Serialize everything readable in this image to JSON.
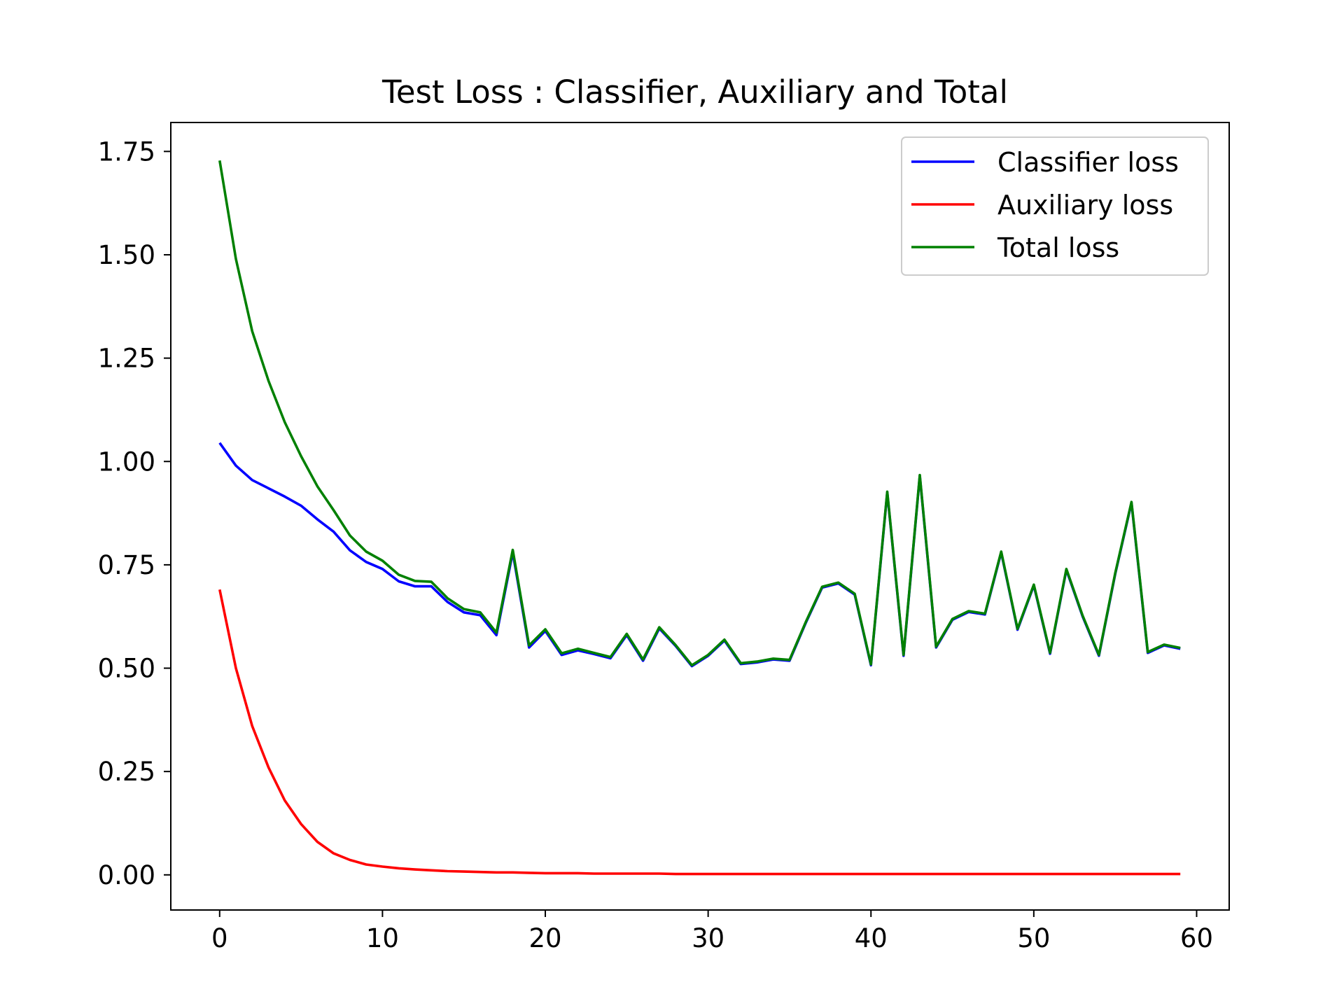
{
  "chart_data": {
    "type": "line",
    "title": "Test Loss : Classifier, Auxiliary and Total",
    "xlabel": "",
    "ylabel": "",
    "xlim": [
      -3,
      62
    ],
    "ylim": [
      -0.085,
      1.82
    ],
    "xticks": [
      0,
      10,
      20,
      30,
      40,
      50,
      60
    ],
    "yticks": [
      0.0,
      0.25,
      0.5,
      0.75,
      1.0,
      1.25,
      1.5,
      1.75
    ],
    "ytick_labels": [
      "0.00",
      "0.25",
      "0.50",
      "0.75",
      "1.00",
      "1.25",
      "1.50",
      "1.75"
    ],
    "xtick_labels": [
      "0",
      "10",
      "20",
      "30",
      "40",
      "50",
      "60"
    ],
    "grid": false,
    "legend_position": "top-right",
    "x": [
      0,
      1,
      2,
      3,
      4,
      5,
      6,
      7,
      8,
      9,
      10,
      11,
      12,
      13,
      14,
      15,
      16,
      17,
      18,
      19,
      20,
      21,
      22,
      23,
      24,
      25,
      26,
      27,
      28,
      29,
      30,
      31,
      32,
      33,
      34,
      35,
      36,
      37,
      38,
      39,
      40,
      41,
      42,
      43,
      44,
      45,
      46,
      47,
      48,
      49,
      50,
      51,
      52,
      53,
      54,
      55,
      56,
      57,
      58,
      59
    ],
    "series": [
      {
        "name": "Classifier loss",
        "color": "#0000ff",
        "values": [
          1.045,
          0.99,
          0.955,
          0.935,
          0.915,
          0.893,
          0.86,
          0.83,
          0.785,
          0.757,
          0.74,
          0.71,
          0.698,
          0.698,
          0.66,
          0.635,
          0.628,
          0.58,
          0.78,
          0.55,
          0.59,
          0.532,
          0.543,
          0.534,
          0.524,
          0.58,
          0.518,
          0.596,
          0.554,
          0.505,
          0.53,
          0.567,
          0.51,
          0.514,
          0.521,
          0.518,
          0.61,
          0.695,
          0.705,
          0.678,
          0.507,
          0.925,
          0.53,
          0.965,
          0.55,
          0.617,
          0.636,
          0.63,
          0.78,
          0.593,
          0.7,
          0.535,
          0.738,
          0.625,
          0.53,
          0.728,
          0.9,
          0.537,
          0.555,
          0.547
        ]
      },
      {
        "name": "Auxiliary loss",
        "color": "#ff0000",
        "values": [
          0.69,
          0.5,
          0.36,
          0.26,
          0.18,
          0.123,
          0.08,
          0.052,
          0.036,
          0.025,
          0.02,
          0.016,
          0.013,
          0.011,
          0.009,
          0.008,
          0.007,
          0.006,
          0.006,
          0.005,
          0.004,
          0.004,
          0.004,
          0.003,
          0.003,
          0.003,
          0.003,
          0.003,
          0.002,
          0.002,
          0.002,
          0.002,
          0.002,
          0.002,
          0.002,
          0.002,
          0.002,
          0.002,
          0.002,
          0.002,
          0.002,
          0.002,
          0.002,
          0.002,
          0.002,
          0.002,
          0.002,
          0.002,
          0.002,
          0.002,
          0.002,
          0.002,
          0.002,
          0.002,
          0.002,
          0.002,
          0.002,
          0.002,
          0.002,
          0.002
        ]
      },
      {
        "name": "Total loss",
        "color": "#008000",
        "values": [
          1.728,
          1.49,
          1.315,
          1.195,
          1.095,
          1.013,
          0.94,
          0.882,
          0.821,
          0.782,
          0.76,
          0.726,
          0.711,
          0.709,
          0.669,
          0.643,
          0.635,
          0.586,
          0.786,
          0.555,
          0.594,
          0.536,
          0.547,
          0.537,
          0.527,
          0.583,
          0.521,
          0.599,
          0.556,
          0.507,
          0.532,
          0.569,
          0.512,
          0.516,
          0.523,
          0.52,
          0.612,
          0.697,
          0.707,
          0.68,
          0.509,
          0.927,
          0.532,
          0.967,
          0.552,
          0.619,
          0.638,
          0.632,
          0.782,
          0.595,
          0.702,
          0.537,
          0.74,
          0.627,
          0.532,
          0.73,
          0.902,
          0.539,
          0.557,
          0.549
        ]
      }
    ]
  }
}
